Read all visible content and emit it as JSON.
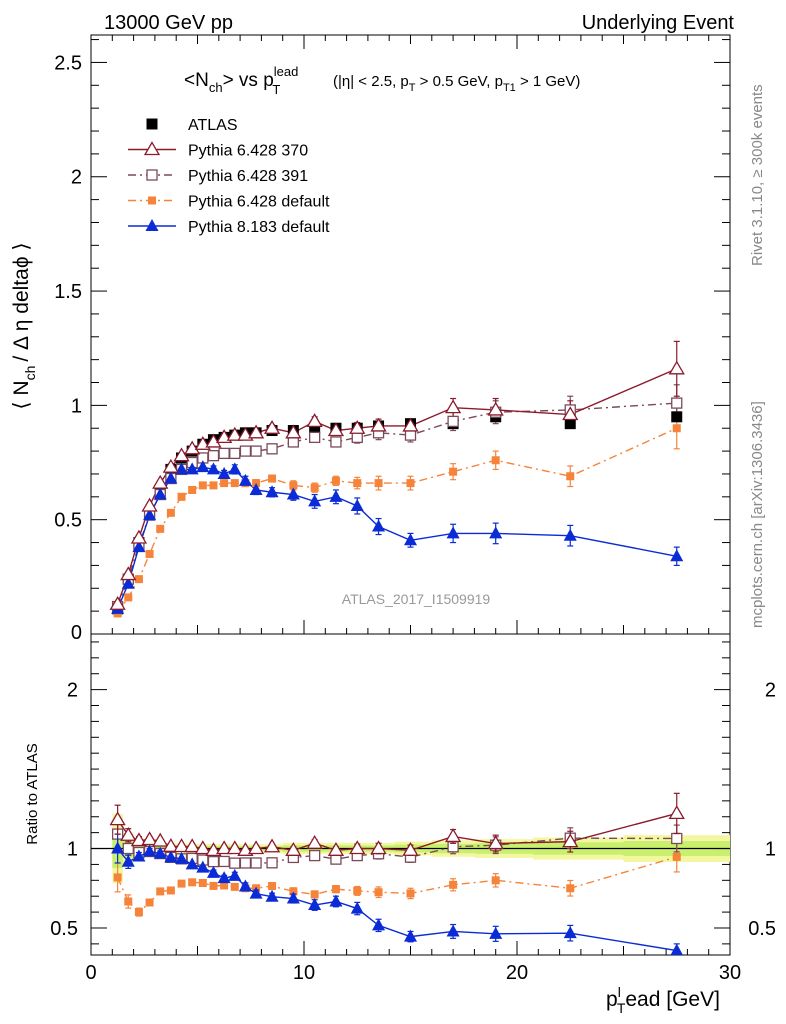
{
  "header": {
    "left": "13000 GeV pp",
    "right": "Underlying Event"
  },
  "title": {
    "main": "<N",
    "main_sub": "ch",
    "main_mid": "> vs p",
    "main_sup": "lead",
    "main_sub2": "T",
    "cuts": "(|η| < 2.5, p",
    "cuts_sub1": "T",
    "cuts_mid": " > 0.5 GeV, p",
    "cuts_sub2": "T1",
    "cuts_end": " > 1 GeV)"
  },
  "side_labels": {
    "rivet": "Rivet 3.1.10, ≥ 300k events",
    "mcplots": "mcplots.cern.ch [arXiv:1306.3436]"
  },
  "analysis_id": "ATLAS_2017_I1509919",
  "axes": {
    "top_ylabel_a": "⟨ N",
    "top_ylabel_sub": "ch",
    "top_ylabel_b": "/ Δ η deltaϕ ⟩",
    "bottom_ylabel": "Ratio to ATLAS",
    "xlabel_a": "p",
    "xlabel_sub": "T",
    "xlabel_sup": "l",
    "xlabel_b": "ead [GeV]"
  },
  "colors": {
    "atlas": "#000000",
    "py370": "#8b1a2b",
    "py391": "#7a4a5a",
    "py6def": "#f5843a",
    "py8def": "#0a2bd6",
    "band_inner": "#c8f06e",
    "band_outer": "#f2f7a0"
  },
  "chart_data": {
    "type": "scatter",
    "x": [
      1.25,
      1.75,
      2.25,
      2.75,
      3.25,
      3.75,
      4.25,
      4.75,
      5.25,
      5.75,
      6.25,
      6.75,
      7.25,
      7.75,
      8.5,
      9.5,
      10.5,
      11.5,
      12.5,
      13.5,
      15.0,
      17.0,
      19.0,
      22.5,
      27.5
    ],
    "xlim": [
      0,
      30
    ],
    "xticks": [
      0,
      10,
      20,
      30
    ],
    "top": {
      "ylim": [
        0,
        2.62
      ],
      "yticks": [
        0.5,
        1,
        1.5,
        2,
        2.5
      ],
      "ytick_labels": [
        "0.5",
        "1",
        "1.5",
        "2",
        "2.5"
      ],
      "y0_label": "0"
    },
    "ratio": {
      "ylim": [
        0.33,
        2.35
      ],
      "yticks": [
        0.5,
        1,
        2
      ],
      "ytick_labels": [
        "0.5",
        "1",
        "2"
      ]
    },
    "legend": {
      "placement": "top-left",
      "entries": [
        "ATLAS",
        "Pythia 6.428 370",
        "Pythia 6.428 391",
        "Pythia 6.428 default",
        "Pythia 8.183 default"
      ]
    },
    "series": [
      {
        "key": "atlas",
        "name": "ATLAS",
        "marker": "square-filled",
        "values": [
          0.11,
          0.24,
          0.4,
          0.53,
          0.63,
          0.72,
          0.77,
          0.8,
          0.83,
          0.85,
          0.86,
          0.87,
          0.88,
          0.88,
          0.89,
          0.89,
          0.9,
          0.9,
          0.9,
          0.91,
          0.92,
          0.92,
          0.95,
          0.92,
          0.95
        ],
        "errors": [
          0.01,
          0.01,
          0.01,
          0.01,
          0.01,
          0.01,
          0.01,
          0.01,
          0.01,
          0.01,
          0.01,
          0.01,
          0.01,
          0.01,
          0.01,
          0.01,
          0.01,
          0.01,
          0.01,
          0.01,
          0.01,
          0.015,
          0.015,
          0.02,
          0.025
        ],
        "band": [
          0.015,
          0.015,
          0.015,
          0.015,
          0.015,
          0.015,
          0.015,
          0.015,
          0.015,
          0.015,
          0.015,
          0.015,
          0.015,
          0.015,
          0.015,
          0.02,
          0.02,
          0.02,
          0.02,
          0.02,
          0.025,
          0.03,
          0.035,
          0.04,
          0.05
        ]
      },
      {
        "key": "py370",
        "name": "Pythia 6.428 370",
        "marker": "triangle-open",
        "line": "solid",
        "values": [
          0.13,
          0.26,
          0.42,
          0.56,
          0.66,
          0.73,
          0.78,
          0.81,
          0.83,
          0.84,
          0.86,
          0.87,
          0.87,
          0.88,
          0.9,
          0.88,
          0.93,
          0.89,
          0.9,
          0.91,
          0.91,
          0.99,
          0.98,
          0.96,
          1.16
        ],
        "errors": [
          0.01,
          0.01,
          0.01,
          0.01,
          0.01,
          0.01,
          0.01,
          0.01,
          0.01,
          0.01,
          0.01,
          0.01,
          0.01,
          0.015,
          0.015,
          0.02,
          0.02,
          0.02,
          0.025,
          0.03,
          0.03,
          0.04,
          0.05,
          0.06,
          0.12
        ]
      },
      {
        "key": "py391",
        "name": "Pythia 6.428 391",
        "marker": "square-open",
        "line": "dashdot",
        "values": [
          0.12,
          0.24,
          0.39,
          0.52,
          0.61,
          0.68,
          0.72,
          0.75,
          0.77,
          0.78,
          0.79,
          0.79,
          0.8,
          0.8,
          0.81,
          0.84,
          0.86,
          0.84,
          0.86,
          0.88,
          0.87,
          0.93,
          0.97,
          0.98,
          1.01
        ],
        "errors": [
          0.01,
          0.01,
          0.01,
          0.01,
          0.01,
          0.01,
          0.01,
          0.01,
          0.01,
          0.01,
          0.01,
          0.01,
          0.015,
          0.015,
          0.015,
          0.02,
          0.02,
          0.02,
          0.025,
          0.03,
          0.03,
          0.04,
          0.05,
          0.06,
          0.08
        ]
      },
      {
        "key": "py6def",
        "name": "Pythia 6.428 default",
        "marker": "square-small",
        "line": "dashdot",
        "values": [
          0.09,
          0.16,
          0.24,
          0.35,
          0.46,
          0.53,
          0.6,
          0.63,
          0.65,
          0.65,
          0.66,
          0.66,
          0.66,
          0.66,
          0.68,
          0.65,
          0.64,
          0.67,
          0.66,
          0.66,
          0.66,
          0.71,
          0.76,
          0.69,
          0.9
        ],
        "errors": [
          0.01,
          0.01,
          0.01,
          0.01,
          0.01,
          0.01,
          0.01,
          0.01,
          0.01,
          0.01,
          0.01,
          0.01,
          0.015,
          0.015,
          0.015,
          0.02,
          0.02,
          0.02,
          0.025,
          0.03,
          0.03,
          0.035,
          0.04,
          0.045,
          0.09
        ]
      },
      {
        "key": "py8def",
        "name": "Pythia 8.183 default",
        "marker": "triangle-filled",
        "line": "solid",
        "values": [
          0.11,
          0.22,
          0.38,
          0.52,
          0.61,
          0.68,
          0.72,
          0.72,
          0.73,
          0.72,
          0.7,
          0.72,
          0.67,
          0.63,
          0.62,
          0.61,
          0.58,
          0.6,
          0.56,
          0.47,
          0.41,
          0.44,
          0.44,
          0.43,
          0.34
        ]
      }
    ],
    "py8def_errors": [
      0.01,
      0.01,
      0.01,
      0.01,
      0.01,
      0.01,
      0.01,
      0.01,
      0.01,
      0.015,
      0.015,
      0.02,
      0.02,
      0.02,
      0.02,
      0.025,
      0.03,
      0.03,
      0.035,
      0.035,
      0.03,
      0.04,
      0.045,
      0.045,
      0.04
    ]
  }
}
